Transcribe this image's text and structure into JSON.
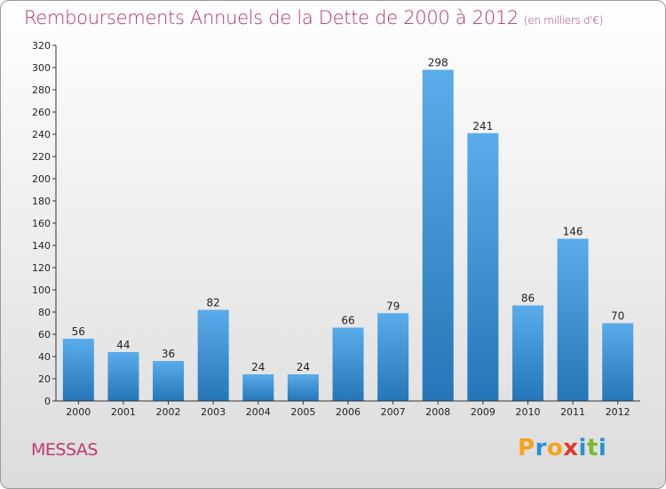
{
  "header": {
    "title": "Remboursements Annuels de la Dette de 2000 à 2012",
    "unit": "(en milliers d'€)"
  },
  "commune": "MESSAS",
  "logo": {
    "letters": [
      "P",
      "r",
      "o",
      "x",
      "i",
      "t",
      "i"
    ],
    "colors": [
      "#f5a31a",
      "#2a8fd8",
      "#f5a31a",
      "#e0392c",
      "#2a8fd8",
      "#7ab82e",
      "#2a8fd8"
    ]
  },
  "colors": {
    "bar_light": "#5aaceb",
    "bar_dark": "#2576b8",
    "axis": "#333333"
  },
  "chart_data": {
    "type": "bar",
    "categories": [
      "2000",
      "2001",
      "2002",
      "2003",
      "2004",
      "2005",
      "2006",
      "2007",
      "2008",
      "2009",
      "2010",
      "2011",
      "2012"
    ],
    "values": [
      56,
      44,
      36,
      82,
      24,
      24,
      66,
      79,
      298,
      241,
      86,
      146,
      70
    ],
    "ylim": [
      0,
      320
    ],
    "yticks": [
      0,
      20,
      40,
      60,
      80,
      100,
      120,
      140,
      160,
      180,
      200,
      220,
      240,
      260,
      280,
      300,
      320
    ],
    "grid": false,
    "legend": "none"
  }
}
